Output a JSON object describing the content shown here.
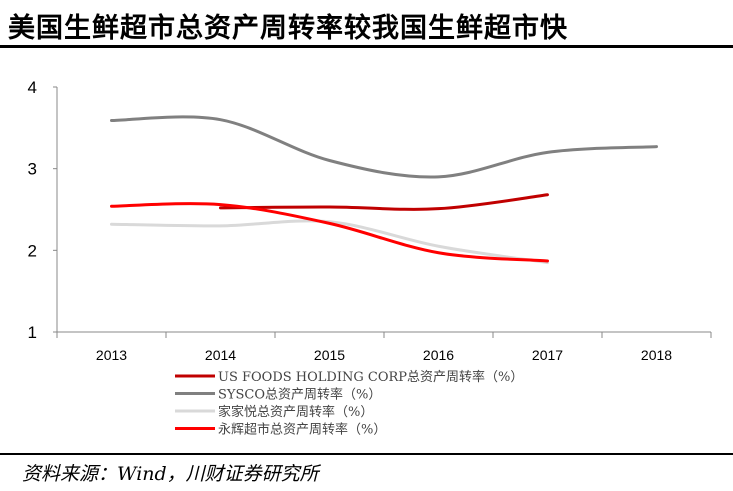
{
  "title": "美国生鲜超市总资产周转率较我国生鲜超市快",
  "source": "资料来源：Wind，川财证券研究所",
  "chart_data": {
    "type": "line",
    "title": "美国生鲜超市总资产周转率较我国生鲜超市快",
    "categories": [
      "2013",
      "2014",
      "2015",
      "2016",
      "2017",
      "2018"
    ],
    "ylim": [
      1,
      4
    ],
    "yticks": [
      1,
      2,
      3,
      4
    ],
    "grid": false,
    "legend_position": "bottom",
    "series": [
      {
        "name": "US FOODS HOLDING CORP总资产周转率（%）",
        "color": "#c00000",
        "values": [
          null,
          2.52,
          2.53,
          2.51,
          2.68,
          null
        ]
      },
      {
        "name": "SYSCO总资产周转率（%）",
        "color": "#808080",
        "values": [
          3.59,
          3.6,
          3.1,
          2.9,
          3.2,
          3.27
        ]
      },
      {
        "name": "家家悦总资产周转率（%）",
        "color": "#d9d9d9",
        "values": [
          2.32,
          2.3,
          2.35,
          2.05,
          1.85,
          null
        ]
      },
      {
        "name": "永辉超市总资产周转率（%）",
        "color": "#ff0000",
        "values": [
          2.54,
          2.56,
          2.33,
          1.97,
          1.87,
          null
        ]
      }
    ]
  }
}
